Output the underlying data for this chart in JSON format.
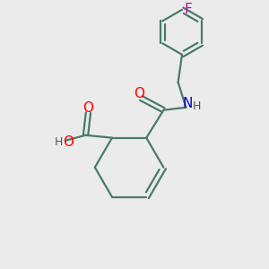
{
  "bg_color": "#ebebeb",
  "bond_color": "#4a7a6a",
  "O_color": "#ff0000",
  "N_color": "#0000cc",
  "F_color": "#cc00aa",
  "H_color": "#555555",
  "line_width": 1.6,
  "font_size": 11,
  "small_font_size": 9,
  "xlim": [
    0,
    10
  ],
  "ylim": [
    0,
    10
  ]
}
